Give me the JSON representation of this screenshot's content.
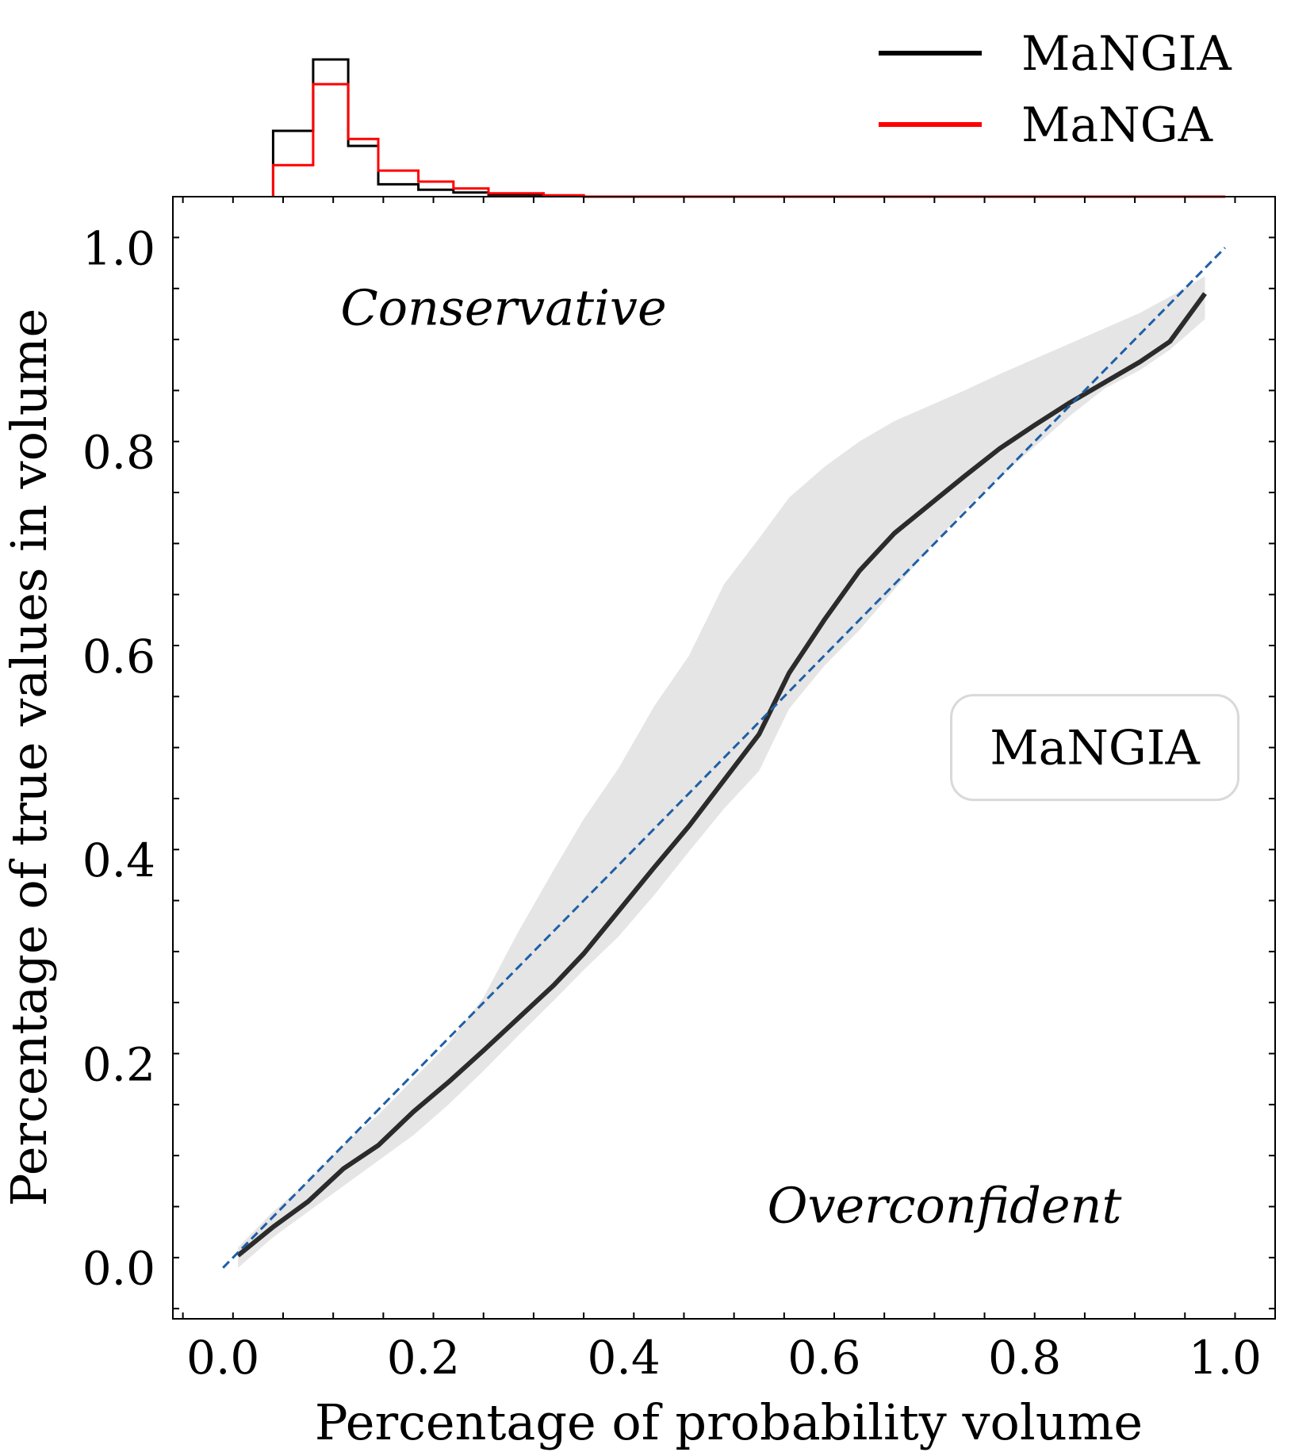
{
  "chart_data": [
    {
      "type": "line",
      "xlabel": "Percentage of probability volume",
      "ylabel": "Percentage of true values in volume",
      "xlim": [
        -0.05,
        1.05
      ],
      "ylim": [
        -0.05,
        1.05
      ],
      "xticks": [
        "0.0",
        "0.2",
        "0.4",
        "0.6",
        "0.8",
        "1.0"
      ],
      "yticks": [
        "0.0",
        "0.2",
        "0.4",
        "0.6",
        "0.8",
        "1.0"
      ],
      "tick_values": [
        0.0,
        0.2,
        0.4,
        0.6,
        0.8,
        1.0
      ],
      "grid": false,
      "series": [
        {
          "name": "MaNGIA",
          "color": "#2b2b2b",
          "x": [
            0.015,
            0.05,
            0.085,
            0.12,
            0.155,
            0.19,
            0.225,
            0.26,
            0.295,
            0.33,
            0.36,
            0.395,
            0.43,
            0.465,
            0.5,
            0.535,
            0.565,
            0.6,
            0.635,
            0.67,
            0.705,
            0.74,
            0.775,
            0.81,
            0.845,
            0.88,
            0.915,
            0.945,
            0.98
          ],
          "y": [
            0.012,
            0.04,
            0.065,
            0.097,
            0.12,
            0.153,
            0.182,
            0.213,
            0.245,
            0.277,
            0.308,
            0.35,
            0.392,
            0.433,
            0.478,
            0.523,
            0.583,
            0.635,
            0.683,
            0.72,
            0.748,
            0.776,
            0.803,
            0.826,
            0.848,
            0.868,
            0.888,
            0.908,
            0.955
          ]
        },
        {
          "name": "",
          "style": "dashed",
          "color": "#1f5fa6",
          "x": [
            0.0,
            1.0
          ],
          "y": [
            0.0,
            1.0
          ]
        }
      ],
      "band": {
        "color": "#e5e5e5",
        "x": [
          0.015,
          0.05,
          0.085,
          0.12,
          0.155,
          0.19,
          0.225,
          0.26,
          0.295,
          0.33,
          0.36,
          0.395,
          0.43,
          0.465,
          0.5,
          0.535,
          0.565,
          0.6,
          0.635,
          0.67,
          0.705,
          0.74,
          0.775,
          0.81,
          0.845,
          0.88,
          0.915,
          0.945,
          0.98
        ],
        "upper": [
          0.02,
          0.055,
          0.085,
          0.12,
          0.15,
          0.185,
          0.22,
          0.265,
          0.33,
          0.39,
          0.44,
          0.49,
          0.55,
          0.6,
          0.67,
          0.715,
          0.755,
          0.785,
          0.81,
          0.83,
          0.845,
          0.86,
          0.876,
          0.891,
          0.906,
          0.921,
          0.936,
          0.952,
          0.972
        ],
        "lower": [
          0.0,
          0.03,
          0.055,
          0.08,
          0.105,
          0.13,
          0.16,
          0.193,
          0.228,
          0.262,
          0.292,
          0.325,
          0.365,
          0.408,
          0.45,
          0.487,
          0.548,
          0.59,
          0.625,
          0.665,
          0.705,
          0.743,
          0.775,
          0.805,
          0.835,
          0.862,
          0.88,
          0.9,
          0.93
        ]
      },
      "annotations": [
        {
          "text": "Conservative",
          "x": 0.28,
          "y": 0.94,
          "style": "italic"
        },
        {
          "text": "Overconfident",
          "x": 0.72,
          "y": 0.06,
          "style": "italic"
        },
        {
          "text": "MaNGIA",
          "x": 0.87,
          "y": 0.51,
          "style": "boxed"
        }
      ]
    },
    {
      "type": "histogram",
      "position": "top-marginal",
      "legend_position": "top-right",
      "bin_edges": [
        0.05,
        0.09,
        0.125,
        0.155,
        0.195,
        0.23,
        0.265,
        0.32,
        0.36,
        1.0
      ],
      "series": [
        {
          "name": "MaNGIA",
          "color": "#000000",
          "counts": [
            0.48,
            1.0,
            0.37,
            0.09,
            0.05,
            0.03,
            0.015,
            0.005,
            0.0
          ]
        },
        {
          "name": "MaNGA",
          "color": "#ff0000",
          "counts": [
            0.23,
            0.82,
            0.42,
            0.19,
            0.11,
            0.06,
            0.025,
            0.01,
            0.0
          ]
        }
      ]
    }
  ]
}
